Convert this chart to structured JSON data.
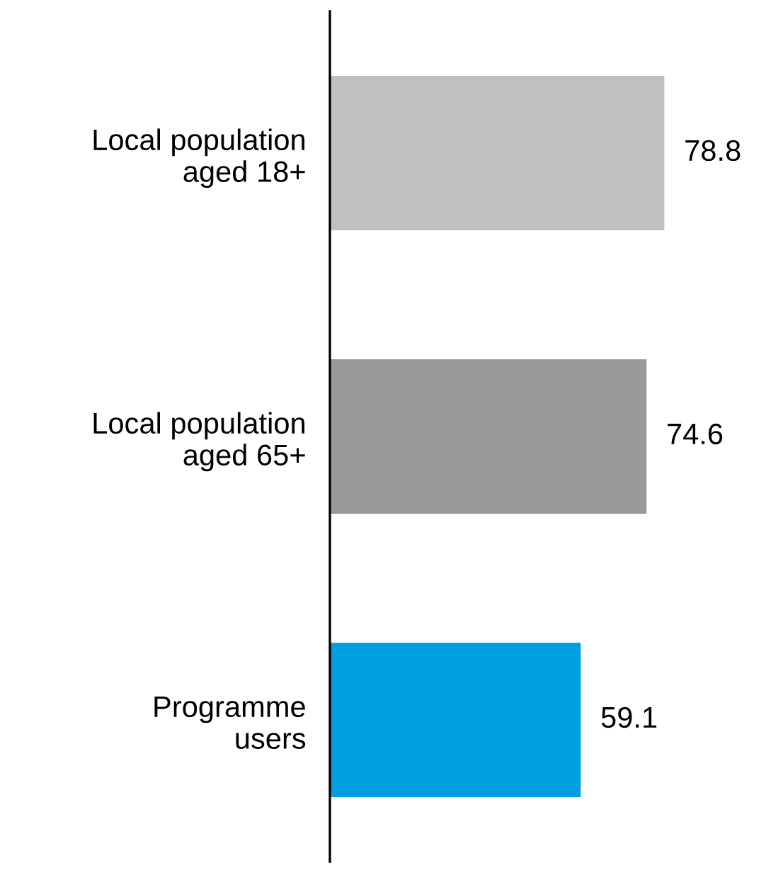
{
  "chart_data": {
    "type": "bar",
    "orientation": "horizontal",
    "categories": [
      "Local population\naged 18+",
      "Local population\naged 65+",
      "Programme\nusers"
    ],
    "values": [
      78.8,
      74.6,
      59.1
    ],
    "colors": [
      "#c0c0c0",
      "#999999",
      "#009fe0"
    ],
    "data_labels": true,
    "grid": false,
    "legend": false
  }
}
